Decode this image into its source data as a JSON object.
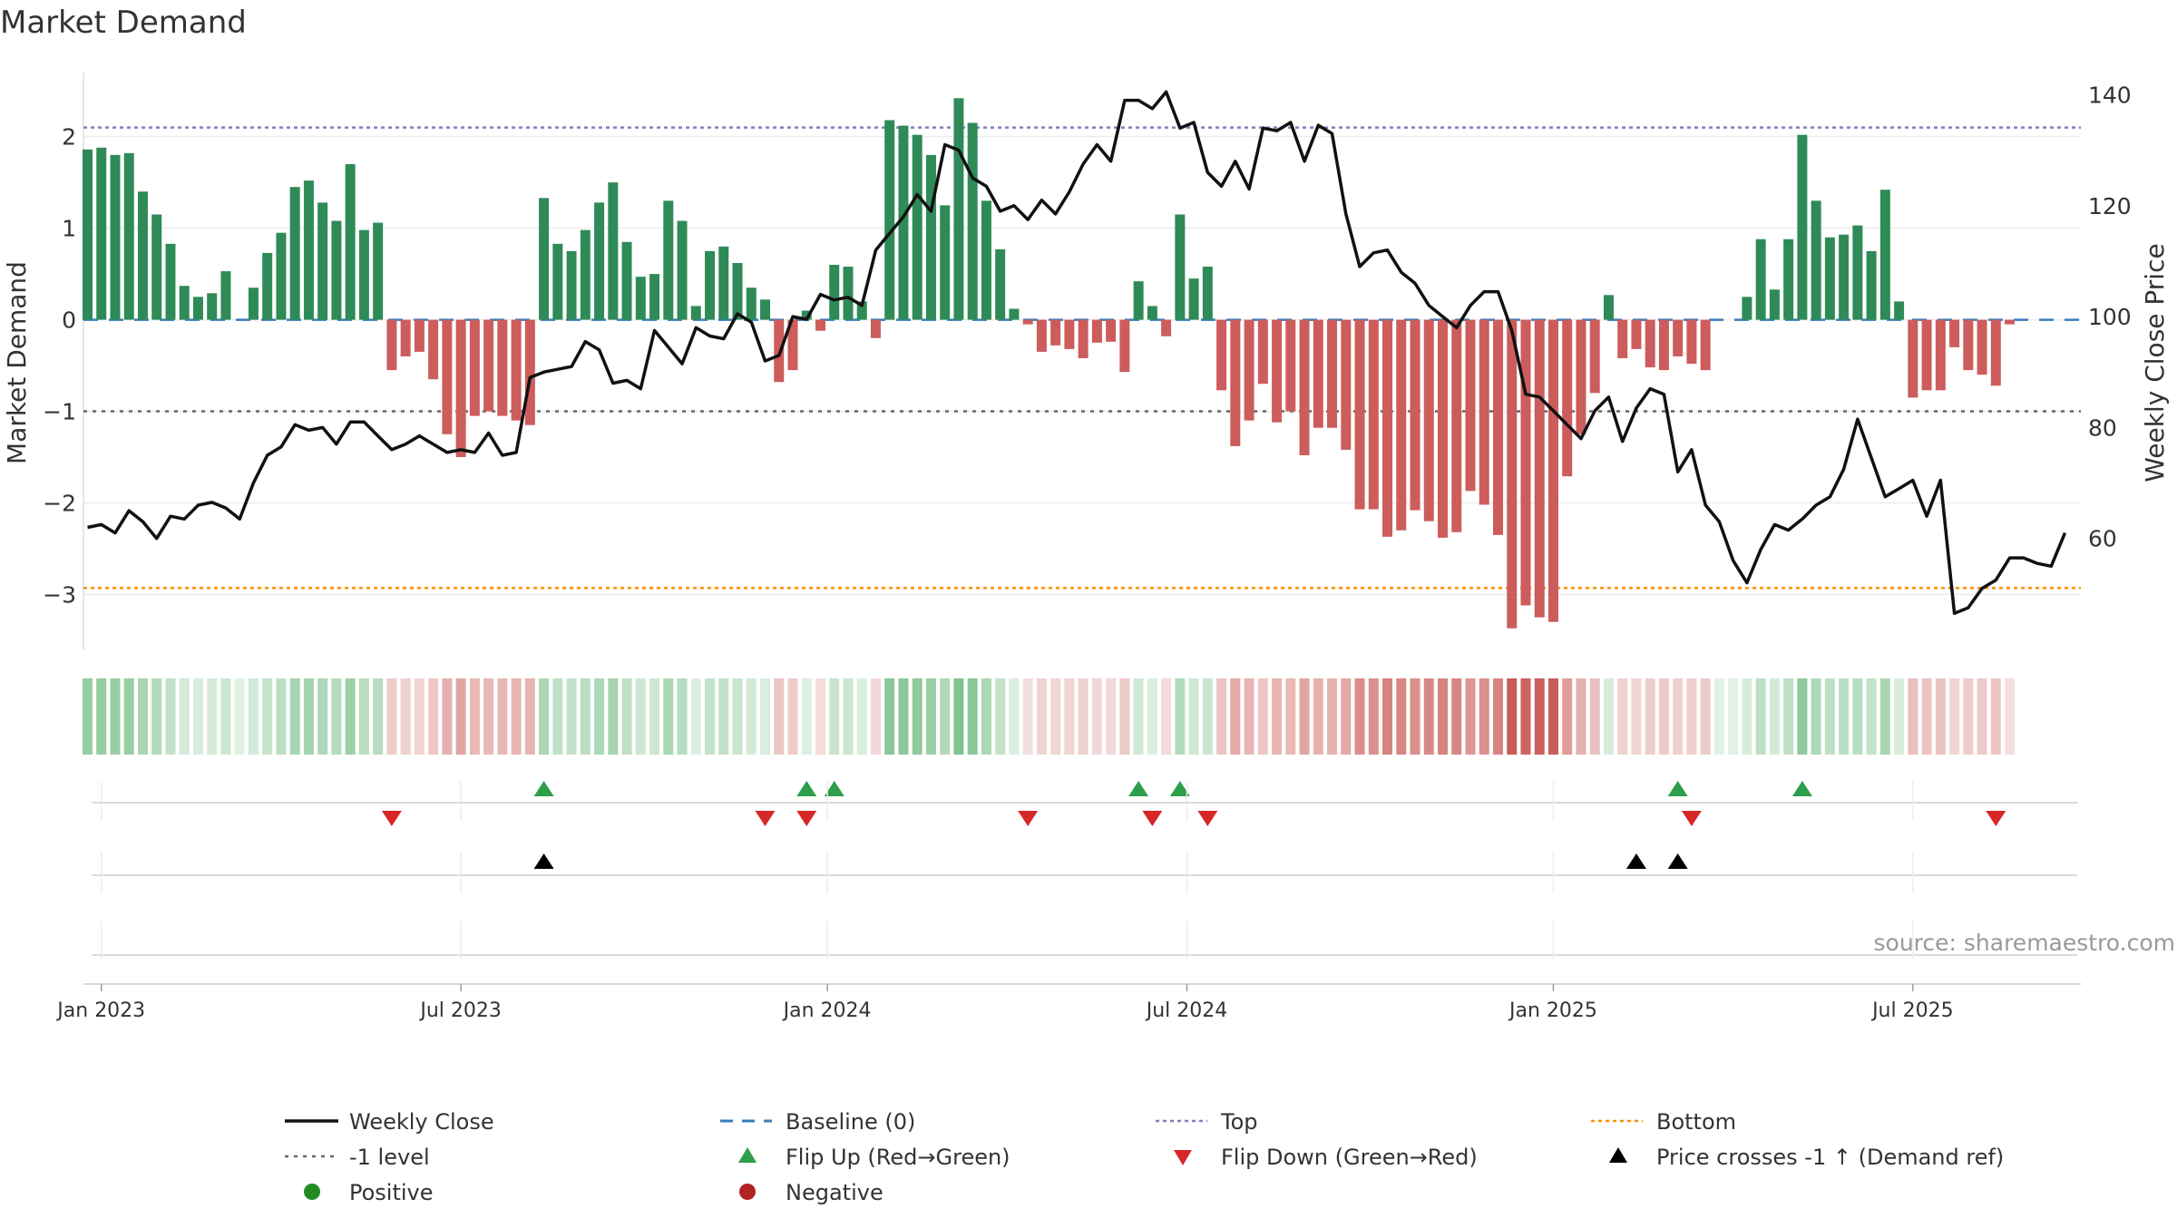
{
  "chart_data": {
    "type": "bar",
    "title": "Market Demand",
    "ylabel": "Market Demand",
    "y2label": "Weekly Close Price",
    "ylim": [
      -3.6,
      2.7
    ],
    "y2lim": [
      40,
      144
    ],
    "yticks": [
      2,
      1,
      0,
      -1,
      -2,
      -3
    ],
    "ytick_labels": [
      "2",
      "1",
      "0",
      "−1",
      "−2",
      "−3"
    ],
    "y2ticks": [
      140,
      120,
      100,
      80,
      60
    ],
    "date_ticks": [
      {
        "label": "Jan 2023",
        "week": 1
      },
      {
        "label": "Jul 2023",
        "week": 27
      },
      {
        "label": "Jan 2024",
        "week": 53.5
      },
      {
        "label": "Jul 2024",
        "week": 79.5
      },
      {
        "label": "Jan 2025",
        "week": 106
      },
      {
        "label": "Jul 2025",
        "week": 132
      }
    ],
    "reference_lines": {
      "top": 2.1,
      "bottom": -2.93,
      "minus_one": -1,
      "baseline": 0
    },
    "demand": [
      1.86,
      1.88,
      1.8,
      1.82,
      1.4,
      1.15,
      0.83,
      0.37,
      0.25,
      0.29,
      0.53,
      0,
      0.35,
      0.73,
      0.95,
      1.45,
      1.52,
      1.28,
      1.08,
      1.7,
      0.98,
      1.06,
      -0.55,
      -0.4,
      -0.35,
      -0.65,
      -1.25,
      -1.5,
      -1.05,
      -1,
      -1.05,
      -1.1,
      -1.15,
      1.33,
      0.83,
      0.75,
      0.98,
      1.28,
      1.5,
      0.85,
      0.47,
      0.5,
      1.3,
      1.08,
      0.15,
      0.75,
      0.8,
      0.62,
      0.35,
      0.22,
      -0.68,
      -0.55,
      0.1,
      -0.12,
      0.6,
      0.58,
      0.2,
      -0.2,
      2.18,
      2.12,
      2.02,
      1.8,
      1.25,
      2.42,
      2.15,
      1.3,
      0.77,
      0.12,
      -0.05,
      -0.35,
      -0.28,
      -0.32,
      -0.42,
      -0.25,
      -0.24,
      -0.57,
      0.42,
      0.15,
      -0.18,
      1.15,
      0.45,
      0.58,
      -0.77,
      -1.38,
      -1.1,
      -0.7,
      -1.12,
      -1.0,
      -1.48,
      -1.18,
      -1.18,
      -1.42,
      -2.07,
      -2.07,
      -2.37,
      -2.3,
      -2.08,
      -2.2,
      -2.38,
      -2.32,
      -1.87,
      -2.02,
      -2.35,
      -3.37,
      -3.12,
      -3.25,
      -3.3,
      -1.71,
      -1.25,
      -0.8,
      0.27,
      -0.42,
      -0.32,
      -0.52,
      -0.55,
      -0.4,
      -0.48,
      -0.55,
      0,
      0,
      0.25,
      0.88,
      0.33,
      0.88,
      2.02,
      1.3,
      0.9,
      0.93,
      1.03,
      0.75,
      1.42,
      0.2,
      -0.85,
      -0.77,
      -0.77,
      -0.3,
      -0.55,
      -0.6,
      -0.72,
      -0.05
    ],
    "weekly_close": [
      62,
      62.5,
      61,
      65,
      63,
      60,
      64,
      63.5,
      66,
      66.5,
      65.5,
      63.5,
      70,
      75,
      76.5,
      80.5,
      79.5,
      80,
      77,
      81,
      81,
      78.5,
      76,
      77,
      78.5,
      77,
      75.5,
      76,
      75.5,
      79,
      75,
      75.5,
      89,
      90,
      90.5,
      91,
      95.5,
      94,
      88,
      88.5,
      87,
      97.5,
      94.5,
      91.5,
      98,
      96.5,
      96,
      100.5,
      99,
      92,
      93,
      100,
      99.5,
      104,
      103,
      103.5,
      102,
      112,
      115,
      118,
      122,
      119,
      131,
      130,
      125,
      123.5,
      119,
      120,
      117.5,
      121,
      118.5,
      122.5,
      127.5,
      131,
      128,
      139,
      139,
      137.5,
      140.5,
      134,
      135,
      126,
      123.5,
      128,
      123,
      134,
      133.5,
      135,
      128,
      134.5,
      133,
      118.5,
      109,
      111.5,
      112,
      108,
      106,
      102,
      100,
      98,
      102,
      104.5,
      104.5,
      97.5,
      86,
      85.5,
      83,
      80.5,
      78,
      83,
      85.5,
      77.5,
      83.5,
      87,
      86,
      72,
      76,
      66,
      63,
      56,
      52,
      58,
      62.5,
      61.5,
      63.5,
      66,
      67.5,
      72.5,
      81.5,
      74.5,
      67.5,
      69,
      70.5,
      64,
      70.5,
      46.5,
      47.5,
      51,
      52.5,
      56.5,
      56.5,
      55.5,
      55,
      61
    ]
  },
  "flip_up_weeks": [
    33,
    52,
    54,
    76,
    79,
    115,
    124
  ],
  "flip_down_weeks": [
    22,
    49,
    52,
    68,
    77,
    81,
    116,
    138
  ],
  "price_cross_weeks": [
    33,
    112,
    115
  ],
  "source_text": "source: sharemaestro.com",
  "legend": {
    "weekly_close": "Weekly Close",
    "baseline": "Baseline (0)",
    "top": "Top",
    "bottom": "Bottom",
    "minus_one": "-1 level",
    "flip_up": "Flip Up (Red→Green)",
    "flip_down": "Flip Down (Green→Red)",
    "price_cross": "Price crosses -1 ↑ (Demand ref)",
    "positive": "Positive",
    "negative": "Negative"
  },
  "colors": {
    "positive": "#2e8b57",
    "negative": "#cd5c5c",
    "price": "#111111",
    "top": "#7f7fbf",
    "bottom": "#ff8c00",
    "baseline": "#3a7dbb",
    "minus_one": "#666666",
    "flip_up": "#2e9e4a",
    "flip_down": "#d62728",
    "price_cross": "#000000",
    "legend_positive": "#228b22",
    "legend_negative": "#b22222"
  }
}
